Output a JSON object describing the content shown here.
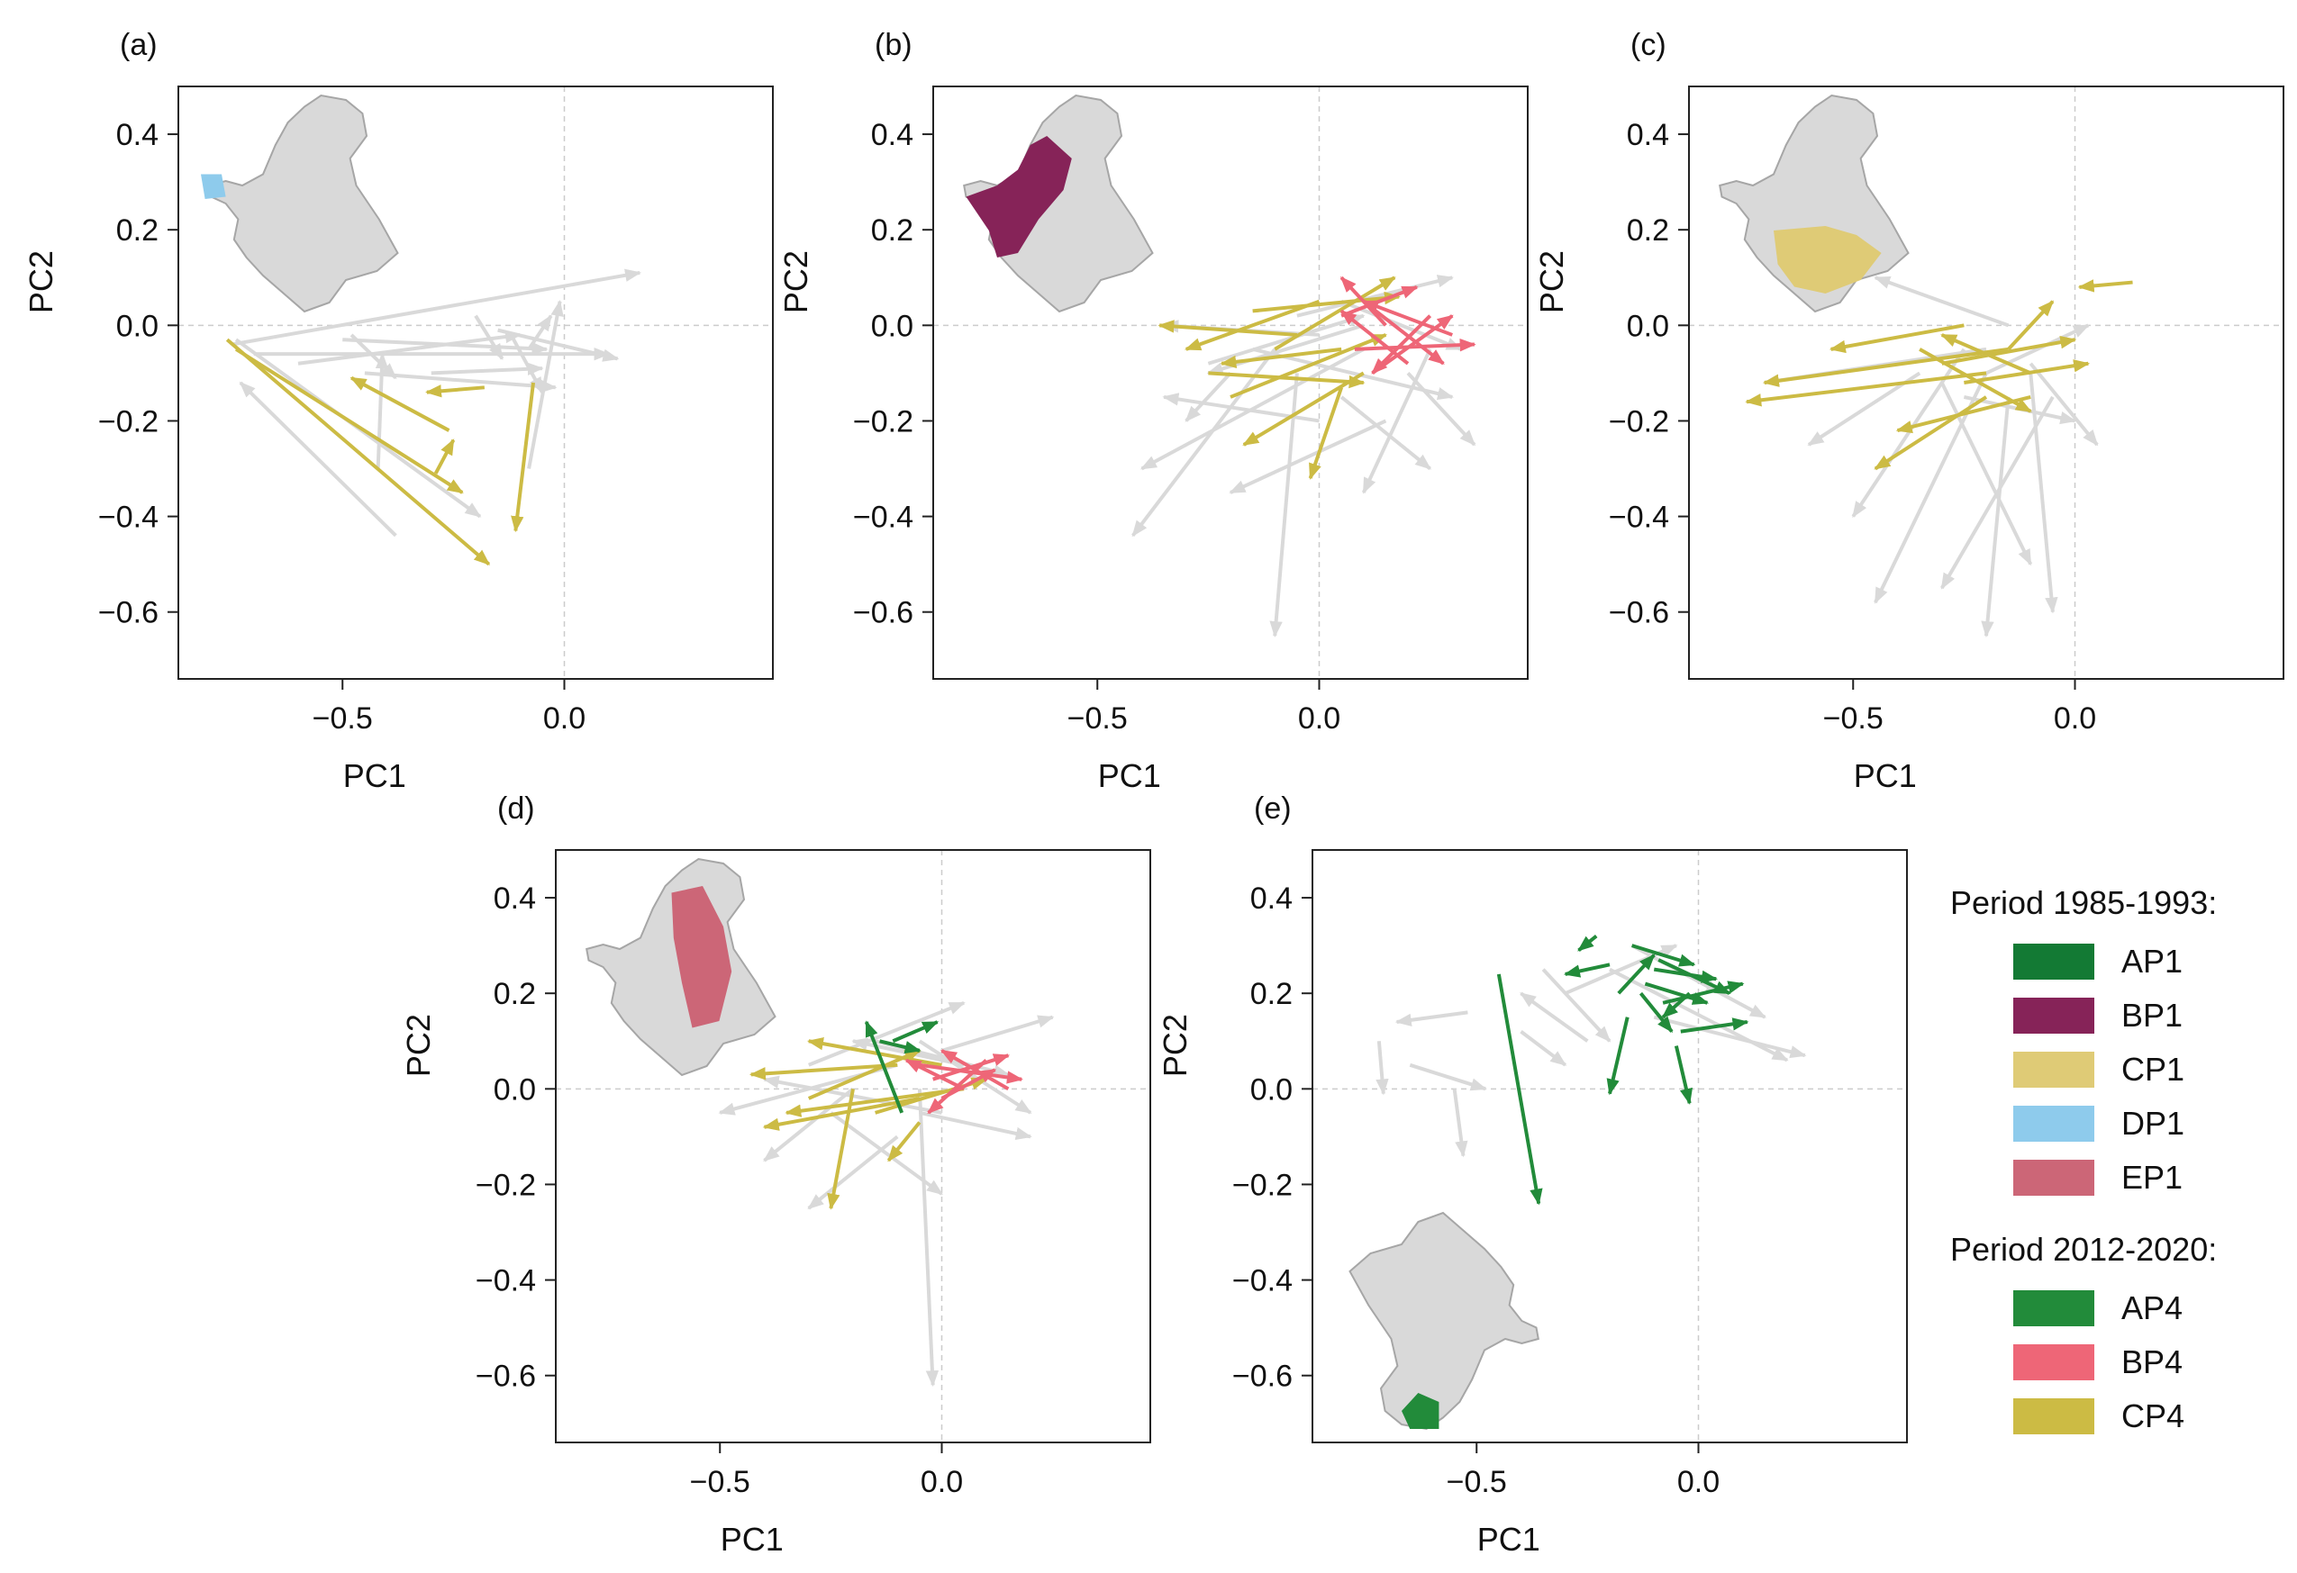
{
  "colors": {
    "background_arrow": "#d9d9d9",
    "map_fill": "#d9d9d9",
    "map_edge": "#a6a6a6",
    "AP1": "#137a34",
    "BP1": "#862358",
    "CP1": "#dfcb76",
    "DP1": "#8ecbec",
    "EP1": "#cc6677",
    "AP4": "#228b3a",
    "BP4": "#ee6677",
    "CP4": "#ccbb44"
  },
  "legend": {
    "group1_title": "Period 1985-1993:",
    "group1": [
      {
        "key": "AP1",
        "label": "AP1"
      },
      {
        "key": "BP1",
        "label": "BP1"
      },
      {
        "key": "CP1",
        "label": "CP1"
      },
      {
        "key": "DP1",
        "label": "DP1"
      },
      {
        "key": "EP1",
        "label": "EP1"
      }
    ],
    "group2_title": "Period 2012-2020:",
    "group2": [
      {
        "key": "AP4",
        "label": "AP4"
      },
      {
        "key": "BP4",
        "label": "BP4"
      },
      {
        "key": "CP4",
        "label": "CP4"
      }
    ]
  },
  "chart_data": [
    {
      "panel": "(a)",
      "type": "scatter",
      "xlabel": "PC1",
      "ylabel": "PC2",
      "xlim": [
        -0.87,
        0.47
      ],
      "ylim": [
        -0.74,
        0.5
      ],
      "xticks": [
        -0.5,
        0.0
      ],
      "xtick_labels": [
        "−0.5",
        "0.0"
      ],
      "yticks": [
        0.4,
        0.2,
        0.0,
        -0.2,
        -0.4,
        -0.6
      ],
      "ytick_labels": [
        "0.4",
        "0.2",
        "0.0",
        "−0.2",
        "−0.4",
        "−0.6"
      ],
      "grid_at_zero": true,
      "inset_map": {
        "position": "top-left",
        "highlight": "DP1"
      },
      "highlight_series": [
        "CP4"
      ],
      "background_arrows": [
        [
          -0.74,
          -0.03,
          -0.19,
          -0.4
        ],
        [
          -0.75,
          -0.04,
          0.17,
          0.11
        ],
        [
          -0.7,
          -0.06,
          0.1,
          -0.06
        ],
        [
          -0.48,
          -0.02,
          -0.38,
          -0.11
        ],
        [
          -0.42,
          -0.3,
          -0.41,
          -0.06
        ],
        [
          -0.3,
          -0.1,
          -0.05,
          -0.09
        ],
        [
          -0.45,
          -0.1,
          -0.02,
          -0.13
        ],
        [
          -0.38,
          -0.44,
          -0.73,
          -0.12
        ],
        [
          -0.6,
          -0.08,
          -0.1,
          -0.02
        ],
        [
          -0.15,
          -0.01,
          0.12,
          -0.07
        ],
        [
          -0.08,
          -0.05,
          -0.03,
          0.02
        ],
        [
          -0.12,
          -0.02,
          -0.05,
          -0.14
        ],
        [
          -0.08,
          -0.3,
          -0.01,
          0.05
        ],
        [
          -0.2,
          0.02,
          -0.14,
          -0.07
        ],
        [
          -0.5,
          -0.03,
          -0.04,
          -0.05
        ]
      ],
      "series": [
        {
          "key": "CP4",
          "arrows": [
            [
              -0.76,
              -0.03,
              -0.17,
              -0.5
            ],
            [
              -0.74,
              -0.05,
              -0.23,
              -0.35
            ],
            [
              -0.26,
              -0.22,
              -0.48,
              -0.11
            ],
            [
              -0.29,
              -0.31,
              -0.25,
              -0.24
            ],
            [
              -0.18,
              -0.13,
              -0.31,
              -0.14
            ],
            [
              -0.07,
              -0.12,
              -0.11,
              -0.43
            ]
          ]
        }
      ]
    },
    {
      "panel": "(b)",
      "type": "scatter",
      "xlabel": "PC1",
      "ylabel": "PC2",
      "xlim": [
        -0.87,
        0.47
      ],
      "ylim": [
        -0.74,
        0.5
      ],
      "xticks": [
        -0.5,
        0.0
      ],
      "xtick_labels": [
        "−0.5",
        "0.0"
      ],
      "yticks": [
        0.4,
        0.2,
        0.0,
        -0.2,
        -0.4,
        -0.6
      ],
      "ytick_labels": [
        "0.4",
        "0.2",
        "0.0",
        "−0.2",
        "−0.4",
        "−0.6"
      ],
      "grid_at_zero": true,
      "inset_map": {
        "position": "top-left",
        "highlight": "BP1"
      },
      "highlight_series": [
        "CP4",
        "BP4"
      ],
      "background_arrows": [
        [
          -0.1,
          -0.05,
          -0.42,
          -0.44
        ],
        [
          -0.05,
          -0.1,
          -0.1,
          -0.65
        ],
        [
          0.1,
          -0.05,
          -0.4,
          -0.3
        ],
        [
          0.0,
          -0.02,
          -0.35,
          0.0
        ],
        [
          0.2,
          -0.1,
          0.35,
          -0.25
        ],
        [
          -0.2,
          -0.1,
          -0.3,
          -0.2
        ],
        [
          0.05,
          -0.15,
          0.25,
          -0.3
        ],
        [
          -0.15,
          -0.05,
          0.3,
          -0.15
        ],
        [
          0.1,
          0.0,
          -0.25,
          -0.1
        ],
        [
          0.25,
          -0.05,
          0.1,
          -0.35
        ],
        [
          -0.05,
          0.02,
          0.3,
          0.1
        ],
        [
          0.15,
          -0.2,
          -0.2,
          -0.35
        ],
        [
          0.05,
          0.05,
          0.32,
          -0.05
        ],
        [
          -0.25,
          -0.08,
          0.1,
          0.02
        ],
        [
          0.0,
          -0.2,
          -0.35,
          -0.15
        ]
      ],
      "series": [
        {
          "key": "CP4",
          "arrows": [
            [
              -0.05,
              -0.02,
              -0.36,
              0.0
            ],
            [
              0.05,
              -0.05,
              -0.22,
              -0.08
            ],
            [
              -0.2,
              -0.15,
              0.15,
              -0.02
            ],
            [
              0.1,
              -0.1,
              -0.17,
              -0.25
            ],
            [
              -0.15,
              0.03,
              0.18,
              0.06
            ],
            [
              0.05,
              -0.13,
              -0.02,
              -0.32
            ],
            [
              -0.1,
              -0.05,
              0.17,
              0.1
            ],
            [
              0.0,
              0.05,
              -0.3,
              -0.05
            ],
            [
              -0.25,
              -0.1,
              0.1,
              -0.12
            ]
          ]
        },
        {
          "key": "BP4",
          "arrows": [
            [
              0.08,
              -0.05,
              0.35,
              -0.04
            ],
            [
              0.15,
              0.0,
              0.05,
              0.1
            ],
            [
              0.1,
              0.05,
              0.28,
              -0.08
            ],
            [
              0.2,
              -0.08,
              0.05,
              0.03
            ],
            [
              0.25,
              0.02,
              0.12,
              -0.1
            ],
            [
              0.05,
              0.02,
              0.22,
              0.08
            ],
            [
              0.3,
              -0.02,
              0.1,
              0.05
            ],
            [
              0.12,
              -0.1,
              0.3,
              0.02
            ]
          ]
        }
      ]
    },
    {
      "panel": "(c)",
      "type": "scatter",
      "xlabel": "PC1",
      "ylabel": "PC2",
      "xlim": [
        -0.87,
        0.47
      ],
      "ylim": [
        -0.74,
        0.5
      ],
      "xticks": [
        -0.5,
        0.0
      ],
      "xtick_labels": [
        "−0.5",
        "0.0"
      ],
      "yticks": [
        0.4,
        0.2,
        0.0,
        -0.2,
        -0.4,
        -0.6
      ],
      "ytick_labels": [
        "0.4",
        "0.2",
        "0.0",
        "−0.2",
        "−0.4",
        "−0.6"
      ],
      "grid_at_zero": true,
      "inset_map": {
        "position": "top-left",
        "highlight": "CP1"
      },
      "highlight_series": [
        "CP4"
      ],
      "background_arrows": [
        [
          -0.2,
          -0.1,
          -0.45,
          -0.58
        ],
        [
          -0.15,
          -0.15,
          -0.2,
          -0.65
        ],
        [
          -0.1,
          -0.1,
          -0.05,
          -0.6
        ],
        [
          -0.25,
          -0.05,
          -0.5,
          -0.4
        ],
        [
          -0.2,
          -0.05,
          -0.7,
          -0.12
        ],
        [
          -0.1,
          -0.08,
          0.05,
          -0.25
        ],
        [
          -0.3,
          -0.12,
          -0.1,
          -0.5
        ],
        [
          -0.15,
          0.0,
          -0.45,
          0.1
        ],
        [
          -0.05,
          -0.15,
          -0.3,
          -0.55
        ],
        [
          -0.25,
          -0.15,
          0.0,
          -0.2
        ],
        [
          -0.35,
          -0.1,
          -0.6,
          -0.25
        ],
        [
          -0.2,
          -0.1,
          0.03,
          0.0
        ]
      ],
      "series": [
        {
          "key": "CP4",
          "arrows": [
            [
              -0.2,
              -0.1,
              -0.74,
              -0.16
            ],
            [
              -0.15,
              -0.05,
              -0.7,
              -0.12
            ],
            [
              -0.25,
              0.0,
              -0.55,
              -0.05
            ],
            [
              -0.1,
              -0.15,
              -0.4,
              -0.22
            ],
            [
              -0.3,
              -0.08,
              0.0,
              -0.03
            ],
            [
              -0.2,
              -0.15,
              -0.45,
              -0.3
            ],
            [
              -0.15,
              -0.05,
              -0.05,
              0.05
            ],
            [
              -0.35,
              -0.05,
              -0.1,
              -0.18
            ],
            [
              -0.25,
              -0.12,
              0.03,
              -0.08
            ],
            [
              -0.1,
              -0.1,
              -0.3,
              -0.02
            ],
            [
              0.13,
              0.09,
              0.01,
              0.08
            ]
          ]
        }
      ]
    },
    {
      "panel": "(d)",
      "type": "scatter",
      "xlabel": "PC1",
      "ylabel": "PC2",
      "xlim": [
        -0.87,
        0.47
      ],
      "ylim": [
        -0.74,
        0.5
      ],
      "xticks": [
        -0.5,
        0.0
      ],
      "xtick_labels": [
        "−0.5",
        "0.0"
      ],
      "yticks": [
        0.4,
        0.2,
        0.0,
        -0.2,
        -0.4,
        -0.6
      ],
      "ytick_labels": [
        "0.4",
        "0.2",
        "0.0",
        "−0.2",
        "−0.4",
        "−0.6"
      ],
      "grid_at_zero": true,
      "inset_map": {
        "position": "top-left",
        "highlight": "EP1"
      },
      "highlight_series": [
        "CP4",
        "BP4",
        "AP4"
      ],
      "background_arrows": [
        [
          -0.05,
          0.0,
          -0.02,
          -0.62
        ],
        [
          -0.1,
          0.05,
          -0.5,
          -0.05
        ],
        [
          0.0,
          0.08,
          0.25,
          0.15
        ],
        [
          -0.2,
          0.0,
          -0.4,
          -0.15
        ],
        [
          -0.05,
          -0.05,
          0.2,
          -0.1
        ],
        [
          -0.3,
          0.05,
          0.05,
          0.18
        ],
        [
          -0.1,
          -0.1,
          -0.3,
          -0.25
        ],
        [
          0.05,
          0.05,
          -0.2,
          0.1
        ],
        [
          -0.15,
          0.1,
          0.15,
          0.03
        ],
        [
          0.0,
          -0.05,
          -0.4,
          0.02
        ],
        [
          -0.25,
          -0.05,
          0.0,
          -0.22
        ],
        [
          -0.05,
          0.1,
          0.2,
          -0.05
        ]
      ],
      "series": [
        {
          "key": "CP4",
          "arrows": [
            [
              -0.1,
              0.05,
              -0.43,
              0.03
            ],
            [
              -0.05,
              -0.02,
              -0.4,
              -0.08
            ],
            [
              -0.2,
              0.0,
              -0.25,
              -0.25
            ],
            [
              0.0,
              0.05,
              -0.3,
              0.1
            ],
            [
              -0.15,
              -0.05,
              0.1,
              0.02
            ],
            [
              -0.05,
              -0.07,
              -0.12,
              -0.15
            ],
            [
              -0.3,
              -0.02,
              -0.05,
              0.08
            ],
            [
              0.05,
              0.0,
              -0.35,
              -0.05
            ]
          ]
        },
        {
          "key": "BP4",
          "arrows": [
            [
              -0.05,
              0.05,
              0.18,
              0.02
            ],
            [
              0.05,
              0.0,
              -0.08,
              0.06
            ],
            [
              0.1,
              0.06,
              -0.03,
              -0.05
            ],
            [
              -0.02,
              0.02,
              0.15,
              0.07
            ],
            [
              0.15,
              0.0,
              0.0,
              0.08
            ],
            [
              0.0,
              -0.02,
              0.12,
              0.04
            ]
          ]
        },
        {
          "key": "AP4",
          "arrows": [
            [
              -0.09,
              -0.05,
              -0.17,
              0.14
            ],
            [
              -0.11,
              0.1,
              -0.01,
              0.14
            ],
            [
              -0.14,
              0.1,
              -0.05,
              0.08
            ]
          ]
        }
      ]
    },
    {
      "panel": "(e)",
      "type": "scatter",
      "xlabel": "PC1",
      "ylabel": "PC2",
      "xlim": [
        -0.87,
        0.47
      ],
      "ylim": [
        -0.74,
        0.5
      ],
      "xticks": [
        -0.5,
        0.0
      ],
      "xtick_labels": [
        "−0.5",
        "0.0"
      ],
      "yticks": [
        0.4,
        0.2,
        0.0,
        -0.2,
        -0.4,
        -0.6
      ],
      "ytick_labels": [
        "0.4",
        "0.2",
        "0.0",
        "−0.2",
        "−0.4",
        "−0.6"
      ],
      "grid_at_zero": true,
      "inset_map": {
        "position": "bottom-left",
        "highlight": "AP4"
      },
      "highlight_series": [
        "AP4"
      ],
      "background_arrows": [
        [
          -0.52,
          0.16,
          -0.68,
          0.14
        ],
        [
          -0.72,
          0.1,
          -0.71,
          -0.01
        ],
        [
          -0.55,
          0.0,
          -0.53,
          -0.14
        ],
        [
          -0.4,
          0.12,
          -0.3,
          0.05
        ],
        [
          -0.2,
          0.25,
          0.2,
          0.06
        ],
        [
          -0.15,
          0.3,
          0.05,
          0.2
        ],
        [
          -0.3,
          0.2,
          -0.05,
          0.3
        ],
        [
          -0.1,
          0.15,
          0.24,
          0.07
        ],
        [
          -0.25,
          0.1,
          -0.4,
          0.2
        ],
        [
          -0.05,
          0.25,
          0.15,
          0.15
        ],
        [
          -0.35,
          0.25,
          -0.2,
          0.1
        ],
        [
          -0.65,
          0.05,
          -0.48,
          0.0
        ]
      ],
      "series": [
        {
          "key": "AP4",
          "arrows": [
            [
              -0.45,
              0.24,
              -0.36,
              -0.24
            ],
            [
              -0.16,
              0.15,
              -0.2,
              -0.01
            ],
            [
              -0.05,
              0.09,
              -0.02,
              -0.03
            ],
            [
              -0.23,
              0.32,
              -0.27,
              0.29
            ],
            [
              -0.15,
              0.3,
              -0.01,
              0.26
            ],
            [
              -0.1,
              0.25,
              0.04,
              0.23
            ],
            [
              -0.2,
              0.26,
              -0.3,
              0.24
            ],
            [
              -0.12,
              0.22,
              0.02,
              0.18
            ],
            [
              -0.08,
              0.18,
              0.1,
              0.22
            ],
            [
              -0.13,
              0.2,
              -0.06,
              0.12
            ],
            [
              -0.04,
              0.12,
              0.11,
              0.14
            ],
            [
              -0.18,
              0.2,
              -0.1,
              0.28
            ],
            [
              -0.09,
              0.27,
              0.07,
              0.2
            ],
            [
              -0.02,
              0.2,
              -0.08,
              0.15
            ]
          ]
        }
      ]
    }
  ]
}
